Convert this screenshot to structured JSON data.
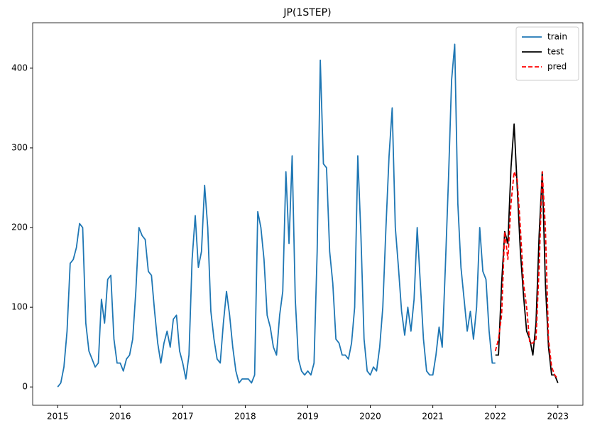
{
  "chart_data": {
    "type": "line",
    "title": "JP(1STEP)",
    "x": [
      2015,
      2015.05,
      2015.1,
      2015.15,
      2015.2,
      2015.25,
      2015.3,
      2015.35,
      2015.4,
      2015.45,
      2015.5,
      2015.55,
      2015.6,
      2015.65,
      2015.7,
      2015.75,
      2015.8,
      2015.85,
      2015.9,
      2015.95,
      2016,
      2016.05,
      2016.1,
      2016.15,
      2016.2,
      2016.25,
      2016.3,
      2016.35,
      2016.4,
      2016.45,
      2016.5,
      2016.55,
      2016.6,
      2016.65,
      2016.7,
      2016.75,
      2016.8,
      2016.85,
      2016.9,
      2016.95,
      2017,
      2017.05,
      2017.1,
      2017.15,
      2017.2,
      2017.25,
      2017.3,
      2017.35,
      2017.4,
      2017.45,
      2017.5,
      2017.55,
      2017.6,
      2017.65,
      2017.7,
      2017.75,
      2017.8,
      2017.85,
      2017.9,
      2017.95,
      2018,
      2018.05,
      2018.1,
      2018.15,
      2018.2,
      2018.25,
      2018.3,
      2018.35,
      2018.4,
      2018.45,
      2018.5,
      2018.55,
      2018.6,
      2018.65,
      2018.7,
      2018.75,
      2018.8,
      2018.85,
      2018.9,
      2018.95,
      2019,
      2019.05,
      2019.1,
      2019.15,
      2019.2,
      2019.25,
      2019.3,
      2019.35,
      2019.4,
      2019.45,
      2019.5,
      2019.55,
      2019.6,
      2019.65,
      2019.7,
      2019.75,
      2019.8,
      2019.85,
      2019.9,
      2019.95,
      2020,
      2020.05,
      2020.1,
      2020.15,
      2020.2,
      2020.25,
      2020.3,
      2020.35,
      2020.4,
      2020.45,
      2020.5,
      2020.55,
      2020.6,
      2020.65,
      2020.7,
      2020.75,
      2020.8,
      2020.85,
      2020.9,
      2020.95,
      2021,
      2021.05,
      2021.1,
      2021.15,
      2021.2,
      2021.25,
      2021.3,
      2021.35,
      2021.4,
      2021.45,
      2021.5,
      2021.55,
      2021.6,
      2021.65,
      2021.7,
      2021.75,
      2021.8,
      2021.85,
      2021.9,
      2021.95,
      2022,
      2022.05,
      2022.1,
      2022.15,
      2022.2,
      2022.25,
      2022.3,
      2022.35,
      2022.4,
      2022.45,
      2022.5,
      2022.55,
      2022.6,
      2022.65,
      2022.7,
      2022.75,
      2022.8,
      2022.85,
      2022.9,
      2022.95,
      2023
    ],
    "series": [
      {
        "name": "train",
        "color": "#1f77b4",
        "linestyle": "solid",
        "values": [
          0,
          5,
          25,
          70,
          155,
          160,
          175,
          205,
          200,
          80,
          45,
          35,
          25,
          30,
          110,
          80,
          135,
          140,
          60,
          30,
          30,
          20,
          35,
          40,
          60,
          120,
          200,
          190,
          185,
          145,
          140,
          95,
          55,
          30,
          55,
          70,
          50,
          85,
          90,
          45,
          30,
          10,
          40,
          160,
          215,
          150,
          170,
          253,
          200,
          95,
          60,
          35,
          30,
          80,
          120,
          90,
          50,
          20,
          5,
          10,
          10,
          10,
          5,
          15,
          220,
          200,
          160,
          90,
          75,
          50,
          40,
          90,
          120,
          270,
          180,
          290,
          110,
          35,
          20,
          15,
          20,
          15,
          30,
          170,
          410,
          280,
          275,
          170,
          130,
          60,
          55,
          40,
          40,
          35,
          55,
          100,
          290,
          190,
          60,
          20,
          15,
          25,
          20,
          50,
          100,
          200,
          290,
          350,
          200,
          150,
          95,
          65,
          100,
          70,
          110,
          200,
          130,
          60,
          20,
          15,
          15,
          40,
          75,
          50,
          150,
          260,
          385,
          430,
          230,
          150,
          110,
          70,
          95,
          60,
          100,
          200,
          145,
          135,
          70,
          30,
          30,
          null,
          null,
          null,
          null,
          null,
          null,
          null,
          null,
          null,
          null,
          null,
          null,
          null,
          null,
          null,
          null,
          null,
          null,
          null,
          null
        ]
      },
      {
        "name": "test",
        "color": "#000000",
        "linestyle": "solid",
        "values": [
          null,
          null,
          null,
          null,
          null,
          null,
          null,
          null,
          null,
          null,
          null,
          null,
          null,
          null,
          null,
          null,
          null,
          null,
          null,
          null,
          null,
          null,
          null,
          null,
          null,
          null,
          null,
          null,
          null,
          null,
          null,
          null,
          null,
          null,
          null,
          null,
          null,
          null,
          null,
          null,
          null,
          null,
          null,
          null,
          null,
          null,
          null,
          null,
          null,
          null,
          null,
          null,
          null,
          null,
          null,
          null,
          null,
          null,
          null,
          null,
          null,
          null,
          null,
          null,
          null,
          null,
          null,
          null,
          null,
          null,
          null,
          null,
          null,
          null,
          null,
          null,
          null,
          null,
          null,
          null,
          null,
          null,
          null,
          null,
          null,
          null,
          null,
          null,
          null,
          null,
          null,
          null,
          null,
          null,
          null,
          null,
          null,
          null,
          null,
          null,
          null,
          null,
          null,
          null,
          null,
          null,
          null,
          null,
          null,
          null,
          null,
          null,
          null,
          null,
          null,
          null,
          null,
          null,
          null,
          null,
          null,
          null,
          null,
          null,
          null,
          null,
          null,
          null,
          null,
          null,
          null,
          null,
          null,
          null,
          null,
          null,
          null,
          null,
          null,
          null,
          40,
          40,
          130,
          195,
          180,
          275,
          330,
          250,
          170,
          115,
          70,
          60,
          40,
          80,
          190,
          270,
          130,
          50,
          15,
          15,
          5
        ]
      },
      {
        "name": "pred",
        "color": "#ff0000",
        "linestyle": "dashed",
        "values": [
          null,
          null,
          null,
          null,
          null,
          null,
          null,
          null,
          null,
          null,
          null,
          null,
          null,
          null,
          null,
          null,
          null,
          null,
          null,
          null,
          null,
          null,
          null,
          null,
          null,
          null,
          null,
          null,
          null,
          null,
          null,
          null,
          null,
          null,
          null,
          null,
          null,
          null,
          null,
          null,
          null,
          null,
          null,
          null,
          null,
          null,
          null,
          null,
          null,
          null,
          null,
          null,
          null,
          null,
          null,
          null,
          null,
          null,
          null,
          null,
          null,
          null,
          null,
          null,
          null,
          null,
          null,
          null,
          null,
          null,
          null,
          null,
          null,
          null,
          null,
          null,
          null,
          null,
          null,
          null,
          null,
          null,
          null,
          null,
          null,
          null,
          null,
          null,
          null,
          null,
          null,
          null,
          null,
          null,
          null,
          null,
          null,
          null,
          null,
          null,
          null,
          null,
          null,
          null,
          null,
          null,
          null,
          null,
          null,
          null,
          null,
          null,
          null,
          null,
          null,
          null,
          null,
          null,
          null,
          null,
          null,
          null,
          null,
          null,
          null,
          null,
          null,
          null,
          null,
          null,
          null,
          null,
          null,
          null,
          null,
          null,
          null,
          null,
          null,
          null,
          45,
          60,
          90,
          195,
          160,
          230,
          270,
          260,
          200,
          130,
          100,
          55,
          55,
          60,
          150,
          270,
          200,
          60,
          25,
          15,
          10
        ]
      }
    ],
    "xlim": [
      2014.6,
      2023.4
    ],
    "xticks": [
      2015,
      2016,
      2017,
      2018,
      2019,
      2020,
      2021,
      2022,
      2023
    ],
    "ylim": [
      -23,
      457
    ],
    "yticks": [
      0,
      100,
      200,
      300,
      400
    ],
    "grid": false,
    "legend": "upper right"
  }
}
